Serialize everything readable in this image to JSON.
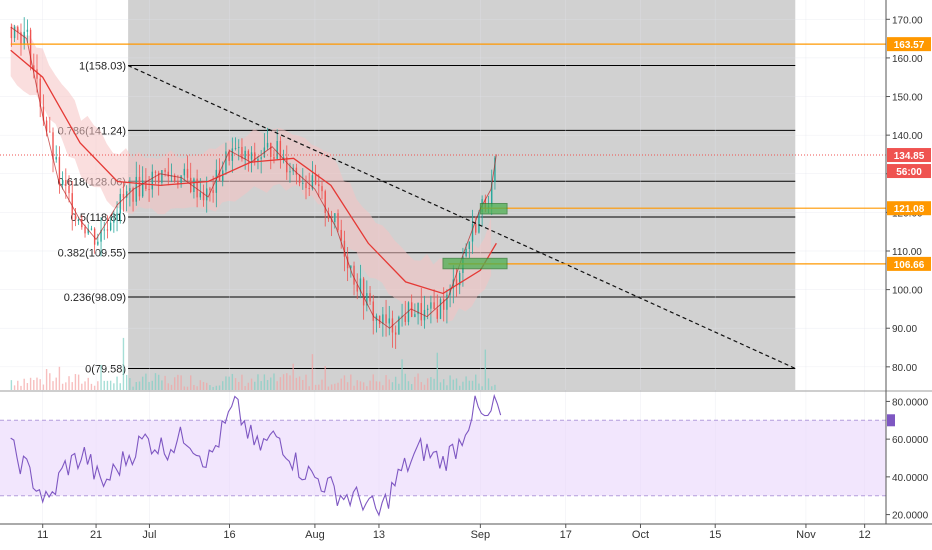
{
  "chart_data": {
    "type": "candlestick",
    "main": {
      "y_axis": {
        "min": 74,
        "max": 175,
        "ticks": [
          "80.00",
          "90.00",
          "100.00",
          "110.00",
          "120.00",
          "130.00",
          "140.00",
          "150.00",
          "160.00",
          "170.00"
        ]
      },
      "x_axis": {
        "labels": [
          {
            "label": "11",
            "date": "2018-06-11"
          },
          {
            "label": "21",
            "date": "2018-06-21"
          },
          {
            "label": "Jul",
            "date": "2018-07-01"
          },
          {
            "label": "16",
            "date": "2018-07-16"
          },
          {
            "label": "Aug",
            "date": "2018-08-01"
          },
          {
            "label": "13",
            "date": "2018-08-13"
          },
          {
            "label": "Sep",
            "date": "2018-09-01"
          },
          {
            "label": "17",
            "date": "2018-09-17"
          },
          {
            "label": "Oct",
            "date": "2018-10-01"
          },
          {
            "label": "15",
            "date": "2018-10-15"
          },
          {
            "label": "Nov",
            "date": "2018-11-01"
          },
          {
            "label": "12",
            "date": "2018-11-12"
          }
        ]
      },
      "fib_box": {
        "x_start": "2018-06-27",
        "x_end": "2018-10-30",
        "color": "#cfcfcf",
        "levels": [
          {
            "label": "1(158.03)",
            "value": 158.03
          },
          {
            "label": "0.786(141.24)",
            "value": 141.24
          },
          {
            "label": "0.618(128.06)",
            "value": 128.06
          },
          {
            "label": "0.5(118.81)",
            "value": 118.81
          },
          {
            "label": "0.382(109.55)",
            "value": 109.55
          },
          {
            "label": "0.236(98.09)",
            "value": 98.09
          },
          {
            "label": "0(79.58)",
            "value": 79.58
          }
        ]
      },
      "trendline": {
        "from": [
          "2018-06-27",
          158.03
        ],
        "to": [
          "2018-10-30",
          79.58
        ],
        "style": "dashed"
      },
      "horizontal_levels": [
        {
          "value": 163.57,
          "label": "163.57",
          "color": "#ff9800",
          "x_start": "2018-06-05"
        },
        {
          "value": 121.08,
          "label": "121.08",
          "color": "#ff9800",
          "x_start": "2018-09-01"
        },
        {
          "value": 106.66,
          "label": "106.66",
          "color": "#ff9800",
          "x_start": "2018-08-26"
        }
      ],
      "current_price": {
        "value": 134.85,
        "label": "134.85",
        "color": "#ef5350"
      },
      "countdown": {
        "label": "56:00"
      },
      "highlight_boxes": [
        {
          "x_start": "2018-09-01",
          "x_end": "2018-09-06",
          "y_low": 119.6,
          "y_high": 122.3,
          "color": "#4caf50"
        },
        {
          "x_start": "2018-08-25",
          "x_end": "2018-09-06",
          "y_low": 105.4,
          "y_high": 108.1,
          "color": "#4caf50"
        }
      ],
      "price_path": [
        {
          "date": "2018-06-05",
          "value": 168
        },
        {
          "date": "2018-06-08",
          "value": 165
        },
        {
          "date": "2018-06-11",
          "value": 145
        },
        {
          "date": "2018-06-14",
          "value": 128
        },
        {
          "date": "2018-06-18",
          "value": 118
        },
        {
          "date": "2018-06-21",
          "value": 113
        },
        {
          "date": "2018-06-25",
          "value": 122
        },
        {
          "date": "2018-06-28",
          "value": 126
        },
        {
          "date": "2018-07-03",
          "value": 130
        },
        {
          "date": "2018-07-07",
          "value": 129
        },
        {
          "date": "2018-07-12",
          "value": 124
        },
        {
          "date": "2018-07-16",
          "value": 136
        },
        {
          "date": "2018-07-20",
          "value": 133
        },
        {
          "date": "2018-07-24",
          "value": 137
        },
        {
          "date": "2018-07-28",
          "value": 131
        },
        {
          "date": "2018-08-01",
          "value": 126
        },
        {
          "date": "2018-08-05",
          "value": 116
        },
        {
          "date": "2018-08-08",
          "value": 104
        },
        {
          "date": "2018-08-12",
          "value": 93
        },
        {
          "date": "2018-08-15",
          "value": 90
        },
        {
          "date": "2018-08-19",
          "value": 95
        },
        {
          "date": "2018-08-22",
          "value": 93
        },
        {
          "date": "2018-08-26",
          "value": 98
        },
        {
          "date": "2018-08-29",
          "value": 110
        },
        {
          "date": "2018-09-01",
          "value": 121
        },
        {
          "date": "2018-09-03",
          "value": 126
        },
        {
          "date": "2018-09-04",
          "value": 135
        }
      ],
      "ma_path": [
        {
          "date": "2018-06-05",
          "value": 162
        },
        {
          "date": "2018-06-11",
          "value": 155
        },
        {
          "date": "2018-06-18",
          "value": 138
        },
        {
          "date": "2018-06-25",
          "value": 128
        },
        {
          "date": "2018-07-03",
          "value": 127
        },
        {
          "date": "2018-07-12",
          "value": 128
        },
        {
          "date": "2018-07-20",
          "value": 133
        },
        {
          "date": "2018-07-28",
          "value": 134
        },
        {
          "date": "2018-08-04",
          "value": 127
        },
        {
          "date": "2018-08-11",
          "value": 112
        },
        {
          "date": "2018-08-18",
          "value": 102
        },
        {
          "date": "2018-08-25",
          "value": 99
        },
        {
          "date": "2018-09-01",
          "value": 105
        },
        {
          "date": "2018-09-04",
          "value": 112
        }
      ]
    },
    "rsi": {
      "y_axis": {
        "min": 15,
        "max": 85,
        "ticks": [
          "20.0000",
          "40.0000",
          "60.0000",
          "80.0000"
        ]
      },
      "band": {
        "upper": 70,
        "lower": 30,
        "color": "#e9d5fb"
      },
      "current": 70,
      "path": [
        {
          "date": "2018-06-05",
          "value": 55
        },
        {
          "date": "2018-06-09",
          "value": 40
        },
        {
          "date": "2018-06-12",
          "value": 25
        },
        {
          "date": "2018-06-15",
          "value": 45
        },
        {
          "date": "2018-06-19",
          "value": 52
        },
        {
          "date": "2018-06-22",
          "value": 35
        },
        {
          "date": "2018-06-26",
          "value": 48
        },
        {
          "date": "2018-06-30",
          "value": 60
        },
        {
          "date": "2018-07-04",
          "value": 55
        },
        {
          "date": "2018-07-08",
          "value": 62
        },
        {
          "date": "2018-07-12",
          "value": 48
        },
        {
          "date": "2018-07-17",
          "value": 78
        },
        {
          "date": "2018-07-21",
          "value": 55
        },
        {
          "date": "2018-07-25",
          "value": 62
        },
        {
          "date": "2018-07-29",
          "value": 45
        },
        {
          "date": "2018-08-02",
          "value": 38
        },
        {
          "date": "2018-08-06",
          "value": 30
        },
        {
          "date": "2018-08-10",
          "value": 28
        },
        {
          "date": "2018-08-13",
          "value": 20
        },
        {
          "date": "2018-08-17",
          "value": 42
        },
        {
          "date": "2018-08-21",
          "value": 55
        },
        {
          "date": "2018-08-25",
          "value": 48
        },
        {
          "date": "2018-08-28",
          "value": 58
        },
        {
          "date": "2018-08-31",
          "value": 78
        },
        {
          "date": "2018-09-02",
          "value": 68
        },
        {
          "date": "2018-09-04",
          "value": 80
        },
        {
          "date": "2018-09-05",
          "value": 70
        }
      ]
    }
  }
}
